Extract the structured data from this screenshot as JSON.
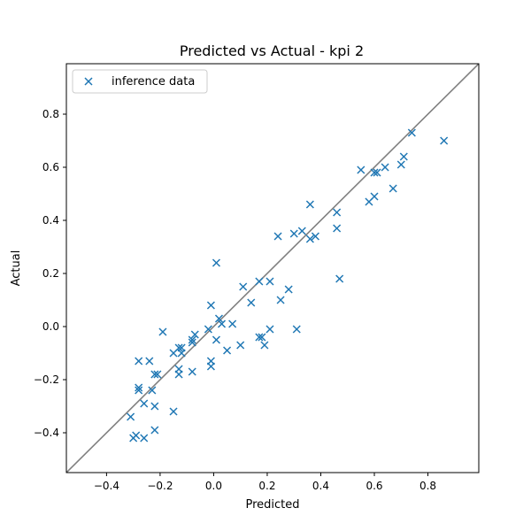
{
  "chart_data": {
    "type": "scatter",
    "title": "Predicted vs Actual - kpi 2",
    "xlabel": "Predicted",
    "ylabel": "Actual",
    "xlim": [
      -0.55,
      0.99
    ],
    "ylim": [
      -0.55,
      0.99
    ],
    "xticks": [
      -0.4,
      -0.2,
      0.0,
      0.2,
      0.4,
      0.6,
      0.8
    ],
    "yticks": [
      -0.4,
      -0.2,
      0.0,
      0.2,
      0.4,
      0.6,
      0.8
    ],
    "xtick_labels": [
      "−0.4",
      "−0.2",
      "0.0",
      "0.2",
      "0.4",
      "0.6",
      "0.8"
    ],
    "ytick_labels": [
      "−0.4",
      "−0.2",
      "0.0",
      "0.2",
      "0.4",
      "0.6",
      "0.8"
    ],
    "grid": false,
    "legend_position": "upper-left",
    "reference_line": {
      "type": "identity",
      "color": "#808080"
    },
    "series": [
      {
        "name": "inference data",
        "marker": "x",
        "color": "#1f77b4",
        "points": [
          [
            0.74,
            0.73
          ],
          [
            0.86,
            0.7
          ],
          [
            0.71,
            0.64
          ],
          [
            0.64,
            0.6
          ],
          [
            0.7,
            0.61
          ],
          [
            0.55,
            0.59
          ],
          [
            0.6,
            0.58
          ],
          [
            0.61,
            0.58
          ],
          [
            0.67,
            0.52
          ],
          [
            0.6,
            0.49
          ],
          [
            0.58,
            0.47
          ],
          [
            0.36,
            0.46
          ],
          [
            0.46,
            0.43
          ],
          [
            0.46,
            0.37
          ],
          [
            0.33,
            0.36
          ],
          [
            0.3,
            0.35
          ],
          [
            0.36,
            0.33
          ],
          [
            0.38,
            0.34
          ],
          [
            0.24,
            0.34
          ],
          [
            0.01,
            0.24
          ],
          [
            0.47,
            0.18
          ],
          [
            0.17,
            0.17
          ],
          [
            0.21,
            0.17
          ],
          [
            0.11,
            0.15
          ],
          [
            0.28,
            0.14
          ],
          [
            0.25,
            0.1
          ],
          [
            0.14,
            0.09
          ],
          [
            -0.01,
            0.08
          ],
          [
            0.02,
            0.03
          ],
          [
            0.07,
            0.01
          ],
          [
            0.03,
            0.01
          ],
          [
            -0.02,
            -0.01
          ],
          [
            0.21,
            -0.01
          ],
          [
            0.31,
            -0.01
          ],
          [
            -0.19,
            -0.02
          ],
          [
            -0.07,
            -0.03
          ],
          [
            0.17,
            -0.04
          ],
          [
            0.18,
            -0.04
          ],
          [
            -0.08,
            -0.05
          ],
          [
            0.01,
            -0.05
          ],
          [
            -0.08,
            -0.06
          ],
          [
            0.1,
            -0.07
          ],
          [
            0.19,
            -0.07
          ],
          [
            -0.12,
            -0.08
          ],
          [
            -0.13,
            -0.08
          ],
          [
            0.05,
            -0.09
          ],
          [
            -0.12,
            -0.1
          ],
          [
            -0.15,
            -0.1
          ],
          [
            -0.01,
            -0.13
          ],
          [
            -0.28,
            -0.13
          ],
          [
            -0.24,
            -0.13
          ],
          [
            -0.01,
            -0.15
          ],
          [
            -0.13,
            -0.16
          ],
          [
            -0.08,
            -0.17
          ],
          [
            -0.21,
            -0.18
          ],
          [
            -0.13,
            -0.18
          ],
          [
            -0.22,
            -0.18
          ],
          [
            -0.28,
            -0.23
          ],
          [
            -0.28,
            -0.24
          ],
          [
            -0.23,
            -0.24
          ],
          [
            -0.26,
            -0.29
          ],
          [
            -0.22,
            -0.3
          ],
          [
            -0.15,
            -0.32
          ],
          [
            -0.31,
            -0.34
          ],
          [
            -0.22,
            -0.39
          ],
          [
            -0.3,
            -0.42
          ],
          [
            -0.29,
            -0.41
          ],
          [
            -0.26,
            -0.42
          ]
        ]
      }
    ]
  }
}
